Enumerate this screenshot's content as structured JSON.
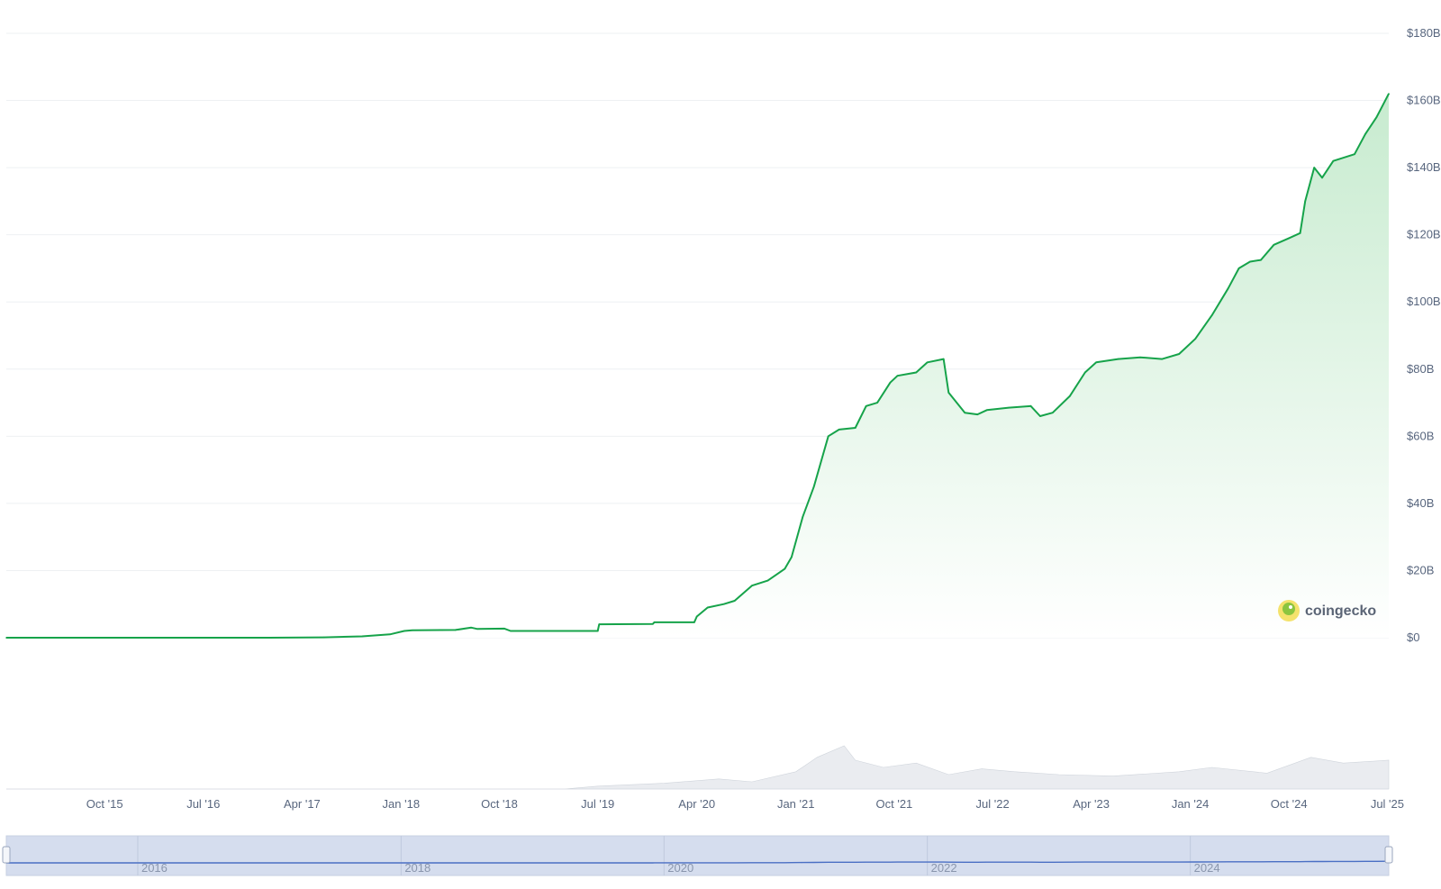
{
  "brand": {
    "name": "coingecko",
    "icon": "coingecko-gecko-icon"
  },
  "colors": {
    "line": "#16a34a",
    "area_top": "#c7ebcf",
    "grid": "#eef0f3",
    "volume": "#d9dde3",
    "navigator_bg": "#d5ddee",
    "navigator_line": "#4a6fc4",
    "axis_text": "#58667e"
  },
  "chart_data": {
    "type": "area",
    "title": "",
    "xlabel": "",
    "ylabel": "",
    "y_unit": "USD",
    "ylim": [
      0,
      180
    ],
    "y_ticks": [
      {
        "value": 0,
        "label": "$0"
      },
      {
        "value": 20,
        "label": "$20B"
      },
      {
        "value": 40,
        "label": "$40B"
      },
      {
        "value": 60,
        "label": "$60B"
      },
      {
        "value": 80,
        "label": "$80B"
      },
      {
        "value": 100,
        "label": "$100B"
      },
      {
        "value": 120,
        "label": "$120B"
      },
      {
        "value": 140,
        "label": "$140B"
      },
      {
        "value": 160,
        "label": "$160B"
      },
      {
        "value": 180,
        "label": "$180B"
      }
    ],
    "x_range": [
      "2015-01-01",
      "2025-07-05"
    ],
    "x_ticks": [
      {
        "date": "2015-10-01",
        "label": "Oct '15"
      },
      {
        "date": "2016-07-01",
        "label": "Jul '16"
      },
      {
        "date": "2017-04-01",
        "label": "Apr '17"
      },
      {
        "date": "2018-01-01",
        "label": "Jan '18"
      },
      {
        "date": "2018-10-01",
        "label": "Oct '18"
      },
      {
        "date": "2019-07-01",
        "label": "Jul '19"
      },
      {
        "date": "2020-04-01",
        "label": "Apr '20"
      },
      {
        "date": "2021-01-01",
        "label": "Jan '21"
      },
      {
        "date": "2021-10-01",
        "label": "Oct '21"
      },
      {
        "date": "2022-07-01",
        "label": "Jul '22"
      },
      {
        "date": "2023-04-01",
        "label": "Apr '23"
      },
      {
        "date": "2024-01-01",
        "label": "Jan '24"
      },
      {
        "date": "2024-10-01",
        "label": "Oct '24"
      },
      {
        "date": "2025-07-01",
        "label": "Jul '25"
      }
    ],
    "grid": true,
    "legend": "none",
    "series": [
      {
        "kind": "market_cap_billions",
        "points": [
          [
            "2015-01-01",
            0.0
          ],
          [
            "2016-01-01",
            0.0
          ],
          [
            "2017-01-01",
            0.0
          ],
          [
            "2017-06-01",
            0.1
          ],
          [
            "2017-09-15",
            0.4
          ],
          [
            "2017-12-01",
            1.0
          ],
          [
            "2018-01-10",
            2.0
          ],
          [
            "2018-02-01",
            2.2
          ],
          [
            "2018-06-01",
            2.3
          ],
          [
            "2018-07-15",
            3.0
          ],
          [
            "2018-08-01",
            2.6
          ],
          [
            "2018-10-15",
            2.7
          ],
          [
            "2018-11-01",
            2.0
          ],
          [
            "2019-07-01",
            2.0
          ],
          [
            "2019-07-05",
            4.0
          ],
          [
            "2019-12-01",
            4.1
          ],
          [
            "2019-12-05",
            4.6
          ],
          [
            "2020-03-25",
            4.6
          ],
          [
            "2020-04-01",
            6.3
          ],
          [
            "2020-05-01",
            9.0
          ],
          [
            "2020-06-15",
            10.0
          ],
          [
            "2020-07-15",
            11.0
          ],
          [
            "2020-09-01",
            15.5
          ],
          [
            "2020-10-15",
            17.0
          ],
          [
            "2020-12-01",
            20.5
          ],
          [
            "2020-12-20",
            24.0
          ],
          [
            "2021-01-20",
            36.0
          ],
          [
            "2021-02-20",
            45.0
          ],
          [
            "2021-04-01",
            60.0
          ],
          [
            "2021-05-01",
            62.0
          ],
          [
            "2021-06-15",
            62.5
          ],
          [
            "2021-07-15",
            69.0
          ],
          [
            "2021-08-15",
            70.0
          ],
          [
            "2021-09-20",
            76.0
          ],
          [
            "2021-10-10",
            78.0
          ],
          [
            "2021-12-01",
            79.0
          ],
          [
            "2022-01-01",
            82.0
          ],
          [
            "2022-02-15",
            83.0
          ],
          [
            "2022-03-01",
            73.0
          ],
          [
            "2022-04-15",
            67.0
          ],
          [
            "2022-05-20",
            66.5
          ],
          [
            "2022-06-15",
            67.8
          ],
          [
            "2022-08-15",
            68.5
          ],
          [
            "2022-10-15",
            69.0
          ],
          [
            "2022-11-10",
            66.0
          ],
          [
            "2022-12-15",
            67.0
          ],
          [
            "2023-02-01",
            72.0
          ],
          [
            "2023-03-15",
            79.0
          ],
          [
            "2023-04-15",
            82.0
          ],
          [
            "2023-06-15",
            83.0
          ],
          [
            "2023-08-15",
            83.5
          ],
          [
            "2023-10-15",
            83.0
          ],
          [
            "2023-12-01",
            84.5
          ],
          [
            "2024-01-15",
            89.0
          ],
          [
            "2024-03-01",
            96.0
          ],
          [
            "2024-04-15",
            104.0
          ],
          [
            "2024-05-15",
            110.0
          ],
          [
            "2024-06-15",
            112.0
          ],
          [
            "2024-07-15",
            112.5
          ],
          [
            "2024-08-20",
            117.0
          ],
          [
            "2024-10-01",
            119.0
          ],
          [
            "2024-11-01",
            120.5
          ],
          [
            "2024-11-15",
            130.0
          ],
          [
            "2024-12-10",
            140.0
          ],
          [
            "2025-01-01",
            137.0
          ],
          [
            "2025-02-01",
            142.0
          ],
          [
            "2025-04-01",
            144.0
          ],
          [
            "2025-05-01",
            150.0
          ],
          [
            "2025-06-01",
            155.0
          ],
          [
            "2025-07-05",
            162.0
          ]
        ]
      },
      {
        "kind": "volume_relative",
        "points": [
          [
            "2015-01-01",
            0.0
          ],
          [
            "2019-04-01",
            0.0
          ],
          [
            "2019-07-01",
            0.02
          ],
          [
            "2020-01-01",
            0.04
          ],
          [
            "2020-06-01",
            0.07
          ],
          [
            "2020-09-01",
            0.05
          ],
          [
            "2021-01-01",
            0.12
          ],
          [
            "2021-03-01",
            0.22
          ],
          [
            "2021-05-15",
            0.3
          ],
          [
            "2021-06-15",
            0.2
          ],
          [
            "2021-09-01",
            0.15
          ],
          [
            "2021-12-01",
            0.18
          ],
          [
            "2022-03-01",
            0.1
          ],
          [
            "2022-06-01",
            0.14
          ],
          [
            "2022-09-01",
            0.12
          ],
          [
            "2023-01-01",
            0.1
          ],
          [
            "2023-06-01",
            0.09
          ],
          [
            "2023-12-01",
            0.12
          ],
          [
            "2024-03-01",
            0.15
          ],
          [
            "2024-08-01",
            0.11
          ],
          [
            "2024-12-01",
            0.22
          ],
          [
            "2025-03-01",
            0.18
          ],
          [
            "2025-07-05",
            0.2
          ]
        ]
      }
    ]
  },
  "navigator": {
    "year_labels": [
      {
        "date": "2016-01-01",
        "label": "2016"
      },
      {
        "date": "2018-01-01",
        "label": "2018"
      },
      {
        "date": "2020-01-01",
        "label": "2020"
      },
      {
        "date": "2022-01-01",
        "label": "2022"
      },
      {
        "date": "2024-01-01",
        "label": "2024"
      }
    ]
  }
}
